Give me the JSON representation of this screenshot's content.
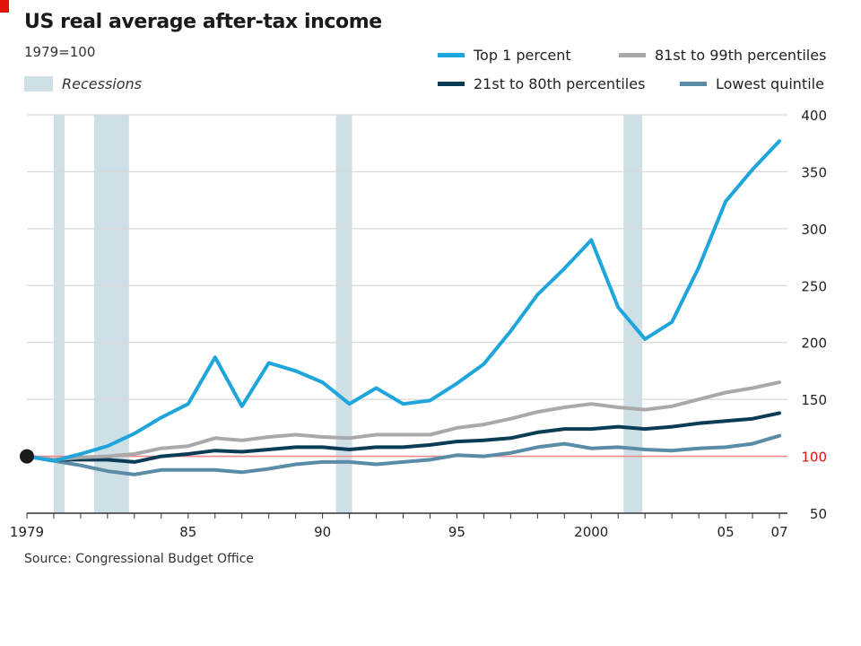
{
  "title": "US real average after-tax income",
  "subtitle": "1979=100",
  "source": "Source: Congressional Budget Office",
  "recession_label": "Recessions",
  "legend": [
    {
      "label": "Top 1 percent",
      "color": "#1ea5dc"
    },
    {
      "label": "81st to 99th percentiles",
      "color": "#a9a9a9"
    },
    {
      "label": "21st to 80th percentiles",
      "color": "#0b3c55"
    },
    {
      "label": "Lowest quintile",
      "color": "#5a8ca8"
    }
  ],
  "colors": {
    "accent": "#e3120b",
    "recession": "#cfdfe6",
    "baseline": "#f08a8a",
    "grid": "#d9d9d9"
  },
  "chart_data": {
    "type": "line",
    "title": "US real average after-tax income",
    "subtitle": "1979=100",
    "xlim": [
      1979,
      2007.3
    ],
    "ylim": [
      50,
      400
    ],
    "y_ticks": [
      50,
      100,
      150,
      200,
      250,
      300,
      350,
      400
    ],
    "y_axis_side": "right",
    "x_ticks": [
      {
        "value": 1979,
        "label": "1979"
      },
      {
        "value": 1985,
        "label": "85"
      },
      {
        "value": 1990,
        "label": "90"
      },
      {
        "value": 1995,
        "label": "95"
      },
      {
        "value": 2000,
        "label": "2000"
      },
      {
        "value": 2005,
        "label": "05"
      },
      {
        "value": 2007,
        "label": "07"
      }
    ],
    "baseline": 100,
    "grid": true,
    "legend_position": "top",
    "recessions": [
      [
        1980.0,
        1980.4
      ],
      [
        1981.5,
        1982.8
      ],
      [
        1990.5,
        1991.1
      ],
      [
        2001.2,
        2001.9
      ]
    ],
    "x": [
      1979,
      1980,
      1981,
      1982,
      1983,
      1984,
      1985,
      1986,
      1987,
      1988,
      1989,
      1990,
      1991,
      1992,
      1993,
      1994,
      1995,
      1996,
      1997,
      1998,
      1999,
      2000,
      2001,
      2002,
      2003,
      2004,
      2005,
      2006,
      2007
    ],
    "series": [
      {
        "name": "Top 1 percent",
        "color": "#1ea5dc",
        "values": [
          100,
          96,
          102,
          109,
          120,
          134,
          146,
          187,
          144,
          182,
          175,
          165,
          146,
          160,
          146,
          149,
          164,
          181,
          210,
          242,
          265,
          290,
          231,
          203,
          218,
          266,
          324,
          352,
          377
        ]
      },
      {
        "name": "81st to 99th percentiles",
        "color": "#a9a9a9",
        "values": [
          100,
          97,
          99,
          100,
          102,
          107,
          109,
          116,
          114,
          117,
          119,
          117,
          116,
          119,
          119,
          119,
          125,
          128,
          133,
          139,
          143,
          146,
          143,
          141,
          144,
          150,
          156,
          160,
          165
        ]
      },
      {
        "name": "21st to 80th percentiles",
        "color": "#0b3c55",
        "values": [
          100,
          97,
          97,
          97,
          95,
          100,
          102,
          105,
          104,
          106,
          108,
          108,
          106,
          108,
          108,
          110,
          113,
          114,
          116,
          121,
          124,
          124,
          126,
          124,
          126,
          129,
          131,
          133,
          138
        ]
      },
      {
        "name": "Lowest quintile",
        "color": "#5a8ca8",
        "values": [
          100,
          96,
          92,
          87,
          84,
          88,
          88,
          88,
          86,
          89,
          93,
          95,
          95,
          93,
          95,
          97,
          101,
          100,
          103,
          108,
          111,
          107,
          108,
          106,
          105,
          107,
          108,
          111,
          118
        ]
      }
    ]
  }
}
